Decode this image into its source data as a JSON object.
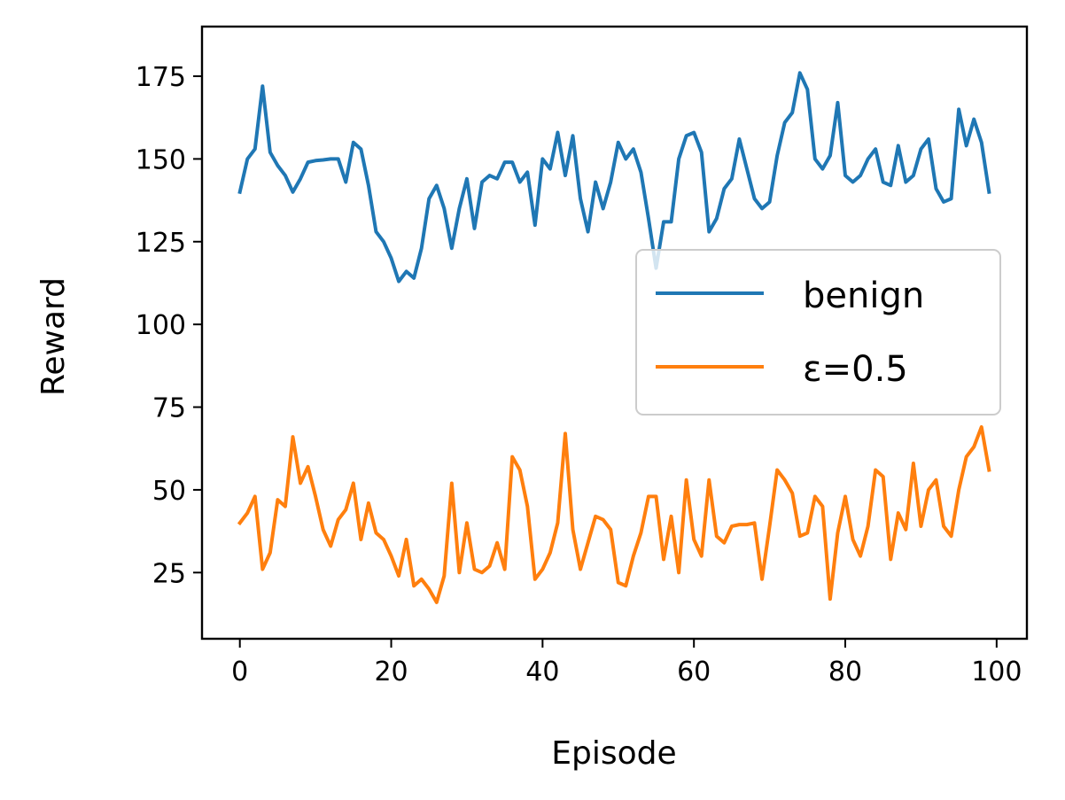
{
  "chart_data": {
    "type": "line",
    "xlabel": "Episode",
    "ylabel": "Reward",
    "xlim": [
      -5,
      104
    ],
    "ylim": [
      5,
      190
    ],
    "xticks": [
      0,
      20,
      40,
      60,
      80,
      100
    ],
    "yticks": [
      25,
      50,
      75,
      100,
      125,
      150,
      175
    ],
    "xtick_labels": [
      "0",
      "20",
      "40",
      "60",
      "80",
      "100"
    ],
    "ytick_labels": [
      "25",
      "50",
      "75",
      "100",
      "125",
      "150",
      "175"
    ],
    "legend_position": "center-right",
    "grid": false,
    "x": [
      0,
      1,
      2,
      3,
      4,
      5,
      6,
      7,
      8,
      9,
      10,
      11,
      12,
      13,
      14,
      15,
      16,
      17,
      18,
      19,
      20,
      21,
      22,
      23,
      24,
      25,
      26,
      27,
      28,
      29,
      30,
      31,
      32,
      33,
      34,
      35,
      36,
      37,
      38,
      39,
      40,
      41,
      42,
      43,
      44,
      45,
      46,
      47,
      48,
      49,
      50,
      51,
      52,
      53,
      54,
      55,
      56,
      57,
      58,
      59,
      60,
      61,
      62,
      63,
      64,
      65,
      66,
      67,
      68,
      69,
      70,
      71,
      72,
      73,
      74,
      75,
      76,
      77,
      78,
      79,
      80,
      81,
      82,
      83,
      84,
      85,
      86,
      87,
      88,
      89,
      90,
      91,
      92,
      93,
      94,
      95,
      96,
      97,
      98,
      99
    ],
    "series": [
      {
        "name": "benign",
        "color": "#1f77b4",
        "values": [
          140,
          150,
          153,
          172,
          152,
          148,
          145,
          140,
          144,
          149,
          149.5,
          149.7,
          150,
          150,
          143,
          155,
          153,
          142,
          128,
          125,
          120,
          113,
          116,
          114,
          123,
          138,
          142,
          135,
          123,
          135,
          144,
          129,
          143,
          145,
          144,
          149,
          149,
          143,
          146,
          130,
          150,
          147,
          158,
          145,
          157,
          138,
          128,
          143,
          135,
          143,
          155,
          150,
          153,
          146,
          132,
          117,
          131,
          131,
          150,
          157,
          158,
          152,
          128,
          132,
          141,
          144,
          156,
          147,
          138,
          135,
          137,
          151,
          161,
          164,
          176,
          171,
          150,
          147,
          151,
          167,
          145,
          143,
          145,
          150,
          153,
          143,
          142,
          154,
          143,
          145,
          153,
          156,
          141,
          137,
          138,
          165,
          154,
          162,
          155,
          140
        ]
      },
      {
        "name": "ε=0.5",
        "color": "#ff7f0e",
        "values": [
          40,
          43,
          48,
          26,
          31,
          47,
          45,
          66,
          52,
          57,
          48,
          38,
          33,
          41,
          44,
          52,
          35,
          46,
          37,
          35,
          30,
          24,
          35,
          21,
          23,
          20,
          16,
          24,
          52,
          25,
          40,
          26,
          25,
          27,
          34,
          26,
          60,
          56,
          45,
          23,
          26,
          31,
          40,
          67,
          38,
          26,
          34,
          42,
          41,
          38,
          22,
          21,
          30,
          37,
          48,
          48,
          29,
          42,
          25,
          53,
          35,
          30,
          53,
          36,
          34,
          39,
          39.5,
          39.5,
          40,
          23,
          39,
          56,
          53,
          49,
          36,
          37,
          48,
          45,
          17,
          37,
          48,
          35,
          30,
          39,
          56,
          54,
          29,
          43,
          38,
          58,
          39,
          50,
          53,
          39,
          36,
          50,
          60,
          63,
          69,
          56
        ]
      }
    ]
  }
}
